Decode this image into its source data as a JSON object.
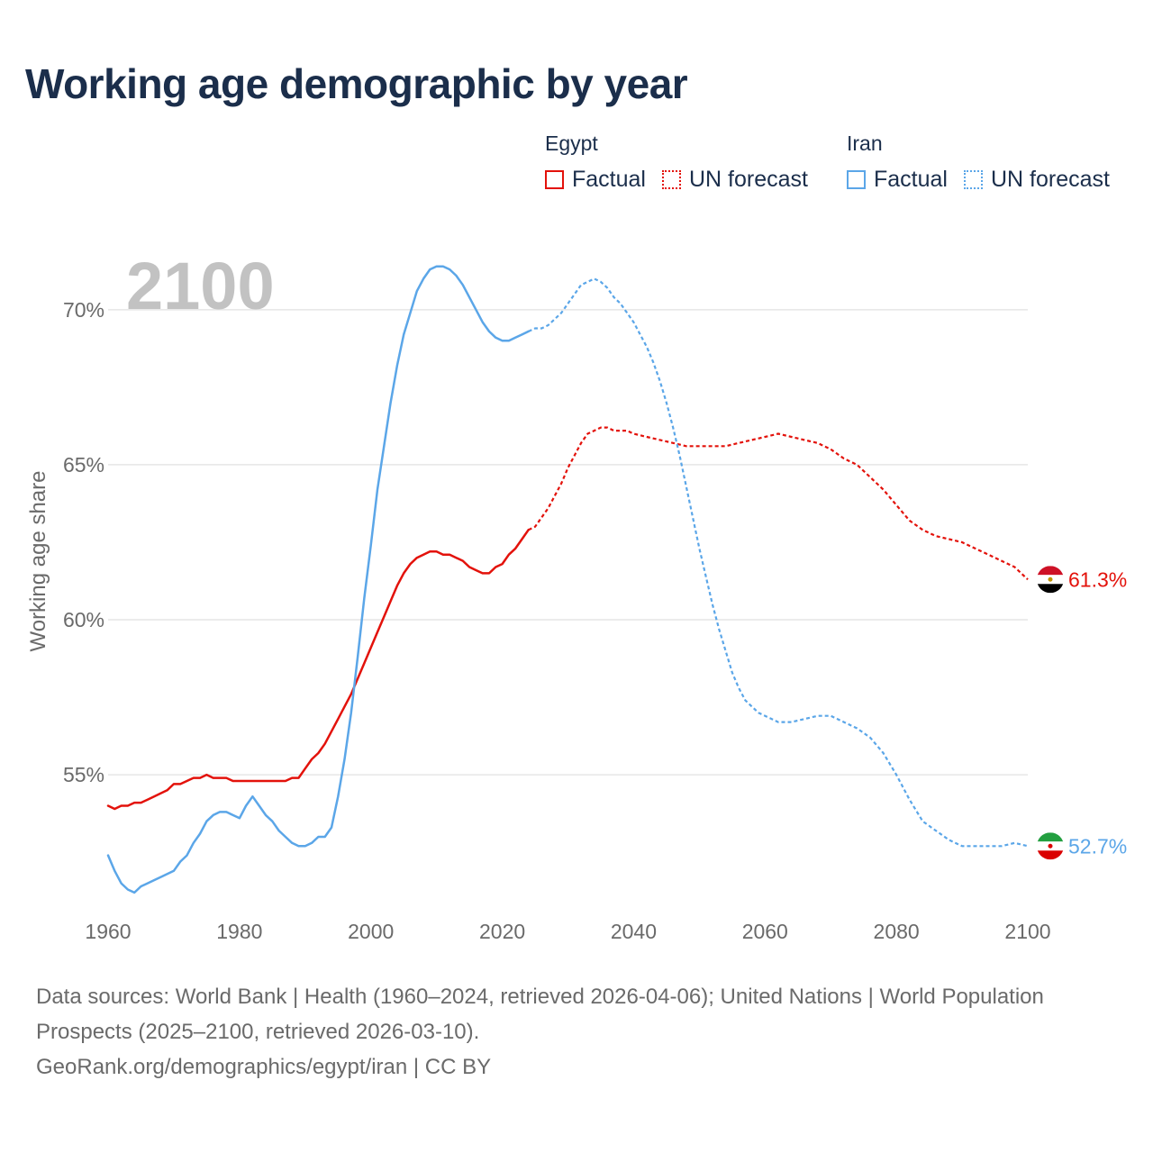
{
  "title": "Working age demographic by year",
  "legend": [
    {
      "name": "Egypt",
      "factual_label": "Factual",
      "forecast_label": "UN forecast",
      "color": "#e3120b"
    },
    {
      "name": "Iran",
      "factual_label": "Factual",
      "forecast_label": "UN forecast",
      "color": "#5ba6e8"
    }
  ],
  "year_watermark": "2100",
  "chart_data": {
    "type": "line",
    "title": "Working age demographic by year",
    "xlabel": "",
    "ylabel": "Working age share",
    "xlim": [
      1960,
      2100
    ],
    "ylim": [
      50.5,
      72
    ],
    "x_ticks": [
      1960,
      1980,
      2000,
      2020,
      2040,
      2060,
      2080,
      2100
    ],
    "x_tick_labels": [
      "1960",
      "1980",
      "2000",
      "2020",
      "2040",
      "2060",
      "2080",
      "2100"
    ],
    "y_ticks": [
      55,
      60,
      65,
      70
    ],
    "y_tick_labels": [
      "55%",
      "60%",
      "65%",
      "70%"
    ],
    "grid": true,
    "factual_until": 2024,
    "series": [
      {
        "name": "Egypt",
        "color": "#e3120b",
        "end_label": "61.3%",
        "flag": "egypt-flag",
        "points": [
          [
            1960,
            54.0
          ],
          [
            1961,
            53.9
          ],
          [
            1962,
            54.0
          ],
          [
            1963,
            54.0
          ],
          [
            1964,
            54.1
          ],
          [
            1965,
            54.1
          ],
          [
            1966,
            54.2
          ],
          [
            1967,
            54.3
          ],
          [
            1968,
            54.4
          ],
          [
            1969,
            54.5
          ],
          [
            1970,
            54.7
          ],
          [
            1971,
            54.7
          ],
          [
            1972,
            54.8
          ],
          [
            1973,
            54.9
          ],
          [
            1974,
            54.9
          ],
          [
            1975,
            55.0
          ],
          [
            1976,
            54.9
          ],
          [
            1977,
            54.9
          ],
          [
            1978,
            54.9
          ],
          [
            1979,
            54.8
          ],
          [
            1980,
            54.8
          ],
          [
            1983,
            54.8
          ],
          [
            1985,
            54.8
          ],
          [
            1987,
            54.8
          ],
          [
            1988,
            54.9
          ],
          [
            1989,
            54.9
          ],
          [
            1990,
            55.2
          ],
          [
            1991,
            55.5
          ],
          [
            1992,
            55.7
          ],
          [
            1993,
            56.0
          ],
          [
            1994,
            56.4
          ],
          [
            1995,
            56.8
          ],
          [
            1996,
            57.2
          ],
          [
            1997,
            57.6
          ],
          [
            1998,
            58.1
          ],
          [
            1999,
            58.6
          ],
          [
            2000,
            59.1
          ],
          [
            2001,
            59.6
          ],
          [
            2002,
            60.1
          ],
          [
            2003,
            60.6
          ],
          [
            2004,
            61.1
          ],
          [
            2005,
            61.5
          ],
          [
            2006,
            61.8
          ],
          [
            2007,
            62.0
          ],
          [
            2008,
            62.1
          ],
          [
            2009,
            62.2
          ],
          [
            2010,
            62.2
          ],
          [
            2011,
            62.1
          ],
          [
            2012,
            62.1
          ],
          [
            2013,
            62.0
          ],
          [
            2014,
            61.9
          ],
          [
            2015,
            61.7
          ],
          [
            2016,
            61.6
          ],
          [
            2017,
            61.5
          ],
          [
            2018,
            61.5
          ],
          [
            2019,
            61.7
          ],
          [
            2020,
            61.8
          ],
          [
            2021,
            62.1
          ],
          [
            2022,
            62.3
          ],
          [
            2023,
            62.6
          ],
          [
            2024,
            62.9
          ],
          [
            2025,
            63.0
          ],
          [
            2026,
            63.3
          ],
          [
            2027,
            63.6
          ],
          [
            2028,
            64.0
          ],
          [
            2029,
            64.4
          ],
          [
            2030,
            64.9
          ],
          [
            2031,
            65.3
          ],
          [
            2032,
            65.7
          ],
          [
            2033,
            66.0
          ],
          [
            2034,
            66.1
          ],
          [
            2035,
            66.2
          ],
          [
            2036,
            66.2
          ],
          [
            2037,
            66.1
          ],
          [
            2038,
            66.1
          ],
          [
            2039,
            66.1
          ],
          [
            2040,
            66.0
          ],
          [
            2042,
            65.9
          ],
          [
            2044,
            65.8
          ],
          [
            2046,
            65.7
          ],
          [
            2048,
            65.6
          ],
          [
            2050,
            65.6
          ],
          [
            2052,
            65.6
          ],
          [
            2054,
            65.6
          ],
          [
            2056,
            65.7
          ],
          [
            2058,
            65.8
          ],
          [
            2060,
            65.9
          ],
          [
            2062,
            66.0
          ],
          [
            2064,
            65.9
          ],
          [
            2066,
            65.8
          ],
          [
            2068,
            65.7
          ],
          [
            2070,
            65.5
          ],
          [
            2072,
            65.2
          ],
          [
            2074,
            65.0
          ],
          [
            2076,
            64.6
          ],
          [
            2078,
            64.2
          ],
          [
            2080,
            63.7
          ],
          [
            2082,
            63.2
          ],
          [
            2084,
            62.9
          ],
          [
            2086,
            62.7
          ],
          [
            2088,
            62.6
          ],
          [
            2090,
            62.5
          ],
          [
            2092,
            62.3
          ],
          [
            2094,
            62.1
          ],
          [
            2096,
            61.9
          ],
          [
            2098,
            61.7
          ],
          [
            2100,
            61.3
          ]
        ]
      },
      {
        "name": "Iran",
        "color": "#5ba6e8",
        "end_label": "52.7%",
        "flag": "iran-flag",
        "points": [
          [
            1960,
            52.4
          ],
          [
            1961,
            51.9
          ],
          [
            1962,
            51.5
          ],
          [
            1963,
            51.3
          ],
          [
            1964,
            51.2
          ],
          [
            1965,
            51.4
          ],
          [
            1966,
            51.5
          ],
          [
            1967,
            51.6
          ],
          [
            1968,
            51.7
          ],
          [
            1969,
            51.8
          ],
          [
            1970,
            51.9
          ],
          [
            1971,
            52.2
          ],
          [
            1972,
            52.4
          ],
          [
            1973,
            52.8
          ],
          [
            1974,
            53.1
          ],
          [
            1975,
            53.5
          ],
          [
            1976,
            53.7
          ],
          [
            1977,
            53.8
          ],
          [
            1978,
            53.8
          ],
          [
            1979,
            53.7
          ],
          [
            1980,
            53.6
          ],
          [
            1981,
            54.0
          ],
          [
            1982,
            54.3
          ],
          [
            1983,
            54.0
          ],
          [
            1984,
            53.7
          ],
          [
            1985,
            53.5
          ],
          [
            1986,
            53.2
          ],
          [
            1987,
            53.0
          ],
          [
            1988,
            52.8
          ],
          [
            1989,
            52.7
          ],
          [
            1990,
            52.7
          ],
          [
            1991,
            52.8
          ],
          [
            1992,
            53.0
          ],
          [
            1993,
            53.0
          ],
          [
            1994,
            53.3
          ],
          [
            1995,
            54.3
          ],
          [
            1996,
            55.5
          ],
          [
            1997,
            57.0
          ],
          [
            1998,
            58.8
          ],
          [
            1999,
            60.7
          ],
          [
            2000,
            62.4
          ],
          [
            2001,
            64.2
          ],
          [
            2002,
            65.6
          ],
          [
            2003,
            67.0
          ],
          [
            2004,
            68.2
          ],
          [
            2005,
            69.2
          ],
          [
            2006,
            69.9
          ],
          [
            2007,
            70.6
          ],
          [
            2008,
            71.0
          ],
          [
            2009,
            71.3
          ],
          [
            2010,
            71.4
          ],
          [
            2011,
            71.4
          ],
          [
            2012,
            71.3
          ],
          [
            2013,
            71.1
          ],
          [
            2014,
            70.8
          ],
          [
            2015,
            70.4
          ],
          [
            2016,
            70.0
          ],
          [
            2017,
            69.6
          ],
          [
            2018,
            69.3
          ],
          [
            2019,
            69.1
          ],
          [
            2020,
            69.0
          ],
          [
            2021,
            69.0
          ],
          [
            2022,
            69.1
          ],
          [
            2023,
            69.2
          ],
          [
            2024,
            69.3
          ],
          [
            2025,
            69.4
          ],
          [
            2026,
            69.4
          ],
          [
            2027,
            69.5
          ],
          [
            2028,
            69.7
          ],
          [
            2029,
            69.9
          ],
          [
            2030,
            70.2
          ],
          [
            2031,
            70.5
          ],
          [
            2032,
            70.8
          ],
          [
            2033,
            70.9
          ],
          [
            2034,
            71.0
          ],
          [
            2035,
            70.9
          ],
          [
            2036,
            70.7
          ],
          [
            2037,
            70.4
          ],
          [
            2038,
            70.2
          ],
          [
            2039,
            69.9
          ],
          [
            2040,
            69.6
          ],
          [
            2041,
            69.2
          ],
          [
            2042,
            68.8
          ],
          [
            2043,
            68.3
          ],
          [
            2044,
            67.7
          ],
          [
            2045,
            67.0
          ],
          [
            2046,
            66.2
          ],
          [
            2047,
            65.3
          ],
          [
            2048,
            64.3
          ],
          [
            2049,
            63.3
          ],
          [
            2050,
            62.3
          ],
          [
            2051,
            61.4
          ],
          [
            2052,
            60.5
          ],
          [
            2053,
            59.7
          ],
          [
            2054,
            59.0
          ],
          [
            2055,
            58.3
          ],
          [
            2056,
            57.8
          ],
          [
            2057,
            57.4
          ],
          [
            2058,
            57.2
          ],
          [
            2059,
            57.0
          ],
          [
            2060,
            56.9
          ],
          [
            2062,
            56.7
          ],
          [
            2064,
            56.7
          ],
          [
            2066,
            56.8
          ],
          [
            2068,
            56.9
          ],
          [
            2070,
            56.9
          ],
          [
            2072,
            56.7
          ],
          [
            2074,
            56.5
          ],
          [
            2076,
            56.2
          ],
          [
            2078,
            55.7
          ],
          [
            2080,
            55.0
          ],
          [
            2082,
            54.2
          ],
          [
            2084,
            53.5
          ],
          [
            2086,
            53.2
          ],
          [
            2088,
            52.9
          ],
          [
            2090,
            52.7
          ],
          [
            2092,
            52.7
          ],
          [
            2094,
            52.7
          ],
          [
            2096,
            52.7
          ],
          [
            2098,
            52.8
          ],
          [
            2100,
            52.7
          ]
        ]
      }
    ]
  },
  "footer": {
    "sources": "Data sources: World Bank | Health (1960–2024, retrieved 2026-04-06); United Nations | World Population Prospects (2025–2100, retrieved 2026-03-10).",
    "credit": "GeoRank.org/demographics/egypt/iran | CC BY"
  }
}
